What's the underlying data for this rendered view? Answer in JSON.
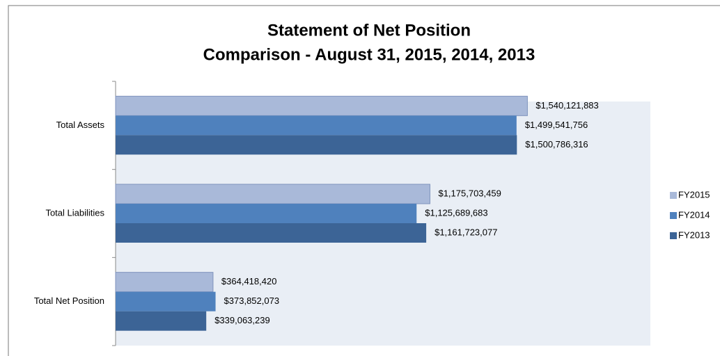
{
  "chart_data": {
    "type": "hbar",
    "title": "Statement of Net Position",
    "subtitle": "Comparison - August 31, 2015, 2014, 2013",
    "categories": [
      "Total Assets",
      "Total Liabilities",
      "Total Net Position"
    ],
    "series": [
      {
        "name": "FY2015",
        "color": "#a9b9d9",
        "values": [
          1540121883,
          1175703459,
          364418420
        ],
        "value_labels": [
          "$1,540,121,883",
          "$1,175,703,459",
          "$364,418,420"
        ]
      },
      {
        "name": "FY2014",
        "color": "#4f81bd",
        "values": [
          1499541756,
          1125689683,
          373852073
        ],
        "value_labels": [
          "$1,499,541,756",
          "$1,125,689,683",
          "$373,852,073"
        ]
      },
      {
        "name": "FY2013",
        "color": "#3c6496",
        "values": [
          1500786316,
          1161723077,
          339063239
        ],
        "value_labels": [
          "$1,500,786,316",
          "$1,161,723,077",
          "$339,063,239"
        ]
      }
    ],
    "xlim": [
      0,
      2000000000
    ],
    "legend": "right"
  }
}
